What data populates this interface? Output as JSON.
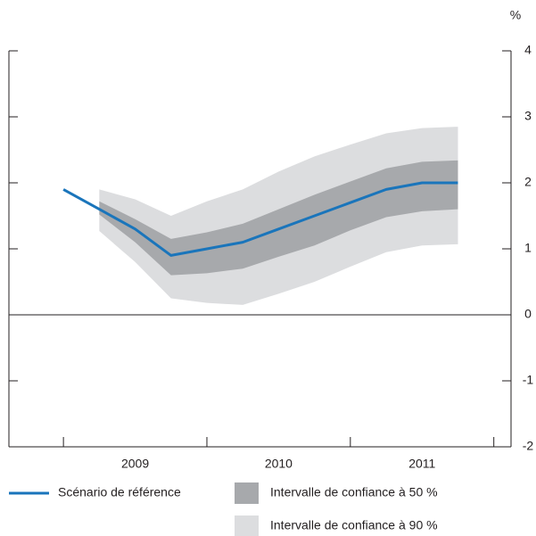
{
  "chart_data": {
    "type": "fan",
    "unit_label": "%",
    "x": [
      2009,
      2009.25,
      2009.5,
      2009.75,
      2010,
      2010.25,
      2010.5,
      2010.75,
      2011,
      2011.25,
      2011.5,
      2011.75
    ],
    "xlim": [
      2008.62,
      2012.12
    ],
    "xticks": [
      {
        "value": 2009.5,
        "label": "2009"
      },
      {
        "value": 2010.5,
        "label": "2010"
      },
      {
        "value": 2011.5,
        "label": "2011"
      }
    ],
    "xtick_marks": [
      2009,
      2010,
      2011,
      2012
    ],
    "ylim": [
      -2,
      4
    ],
    "yticks": [
      -2,
      -1,
      0,
      1,
      2,
      3,
      4
    ],
    "series": [
      {
        "name": "Scénario de référence",
        "color": "#1a75bb",
        "values": [
          1.9,
          1.6,
          1.3,
          0.9,
          1.0,
          1.1,
          1.3,
          1.5,
          1.7,
          1.9,
          2.0,
          2.0
        ]
      }
    ],
    "bands": [
      {
        "name": "Intervalle de confiance à 90 %",
        "color": "#dcdddf",
        "upper": [
          null,
          1.9,
          1.75,
          1.5,
          1.72,
          1.9,
          2.17,
          2.4,
          2.58,
          2.75,
          2.83,
          2.85
        ],
        "lower": [
          null,
          1.27,
          0.8,
          0.25,
          0.18,
          0.15,
          0.32,
          0.5,
          0.73,
          0.95,
          1.05,
          1.07
        ]
      },
      {
        "name": "Intervalle de confiance à 50 %",
        "color": "#a7a9ac",
        "upper": [
          null,
          1.72,
          1.45,
          1.15,
          1.25,
          1.38,
          1.6,
          1.82,
          2.02,
          2.22,
          2.32,
          2.34
        ],
        "lower": [
          null,
          1.52,
          1.1,
          0.6,
          0.63,
          0.7,
          0.88,
          1.05,
          1.28,
          1.48,
          1.57,
          1.6
        ]
      }
    ]
  }
}
